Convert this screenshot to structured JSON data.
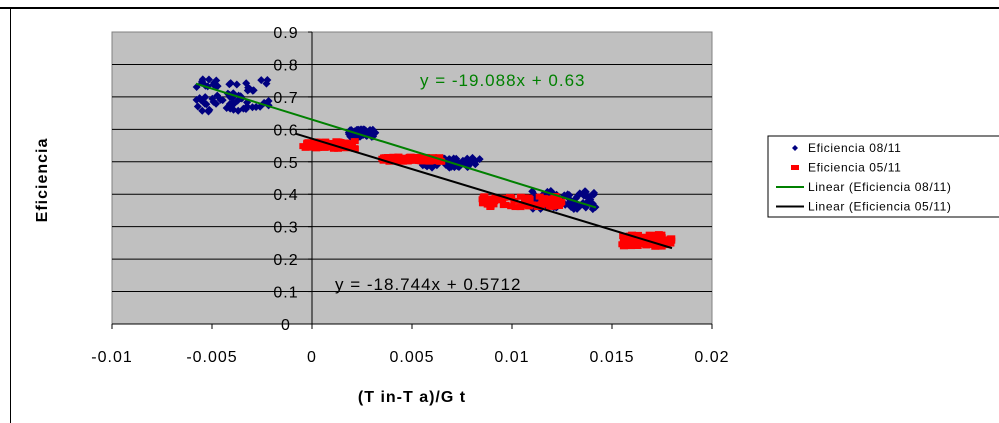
{
  "chart_data": {
    "type": "scatter",
    "xlabel": "(T in-T a)/G t",
    "ylabel": "Eficiencia",
    "xlim": [
      -0.01,
      0.02
    ],
    "ylim": [
      0,
      0.9
    ],
    "x_ticks": [
      "-0.01",
      "-0.005",
      "0",
      "0.005",
      "0.01",
      "0.015",
      "0.02"
    ],
    "x_tick_values": [
      -0.01,
      -0.005,
      0,
      0.005,
      0.01,
      0.015,
      0.02
    ],
    "y_ticks": [
      "0",
      "0.1",
      "0.2",
      "0.3",
      "0.4",
      "0.5",
      "0.6",
      "0.7",
      "0.8",
      "0.9"
    ],
    "y_tick_values": [
      0,
      0.1,
      0.2,
      0.3,
      0.4,
      0.5,
      0.6,
      0.7,
      0.8,
      0.9
    ],
    "grid": "horizontal",
    "legend_position": "right",
    "plot_background": "#c0c0c0",
    "series": [
      {
        "name": "Eficiencia 08/11",
        "kind": "points",
        "color": "#000080",
        "marker": "diamond",
        "clusters": [
          {
            "x_range": [
              -0.0058,
              -0.002
            ],
            "center_y": 0.705,
            "spread_y": 0.05
          },
          {
            "x_range": [
              0.0018,
              0.0032
            ],
            "center_y": 0.588,
            "spread_y": 0.012
          },
          {
            "x_range": [
              0.0055,
              0.0085
            ],
            "center_y": 0.497,
            "spread_y": 0.015
          },
          {
            "x_range": [
              0.011,
              0.0142
            ],
            "center_y": 0.382,
            "spread_y": 0.028
          }
        ]
      },
      {
        "name": "Eficiencia 05/11",
        "kind": "points",
        "color": "#ff0000",
        "marker": "square",
        "clusters": [
          {
            "x_range": [
              -0.0005,
              0.0022
            ],
            "center_y": 0.552,
            "spread_y": 0.012
          },
          {
            "x_range": [
              0.0035,
              0.0065
            ],
            "center_y": 0.508,
            "spread_y": 0.008
          },
          {
            "x_range": [
              0.0085,
              0.0125
            ],
            "center_y": 0.378,
            "spread_y": 0.018
          },
          {
            "x_range": [
              0.0155,
              0.018
            ],
            "center_y": 0.258,
            "spread_y": 0.02
          }
        ]
      },
      {
        "name": "Linear (Eficiencia 08/11)",
        "kind": "trendline",
        "color": "#008000",
        "slope": -19.088,
        "intercept": 0.63,
        "x_range": [
          -0.0058,
          0.0142
        ],
        "equation": "y = -19.088x + 0.63"
      },
      {
        "name": "Linear (Eficiencia 05/11)",
        "kind": "trendline",
        "color": "#000000",
        "slope": -18.744,
        "intercept": 0.5712,
        "x_range": [
          -0.0008,
          0.018
        ],
        "equation": "y = -18.744x + 0.5712"
      }
    ]
  }
}
